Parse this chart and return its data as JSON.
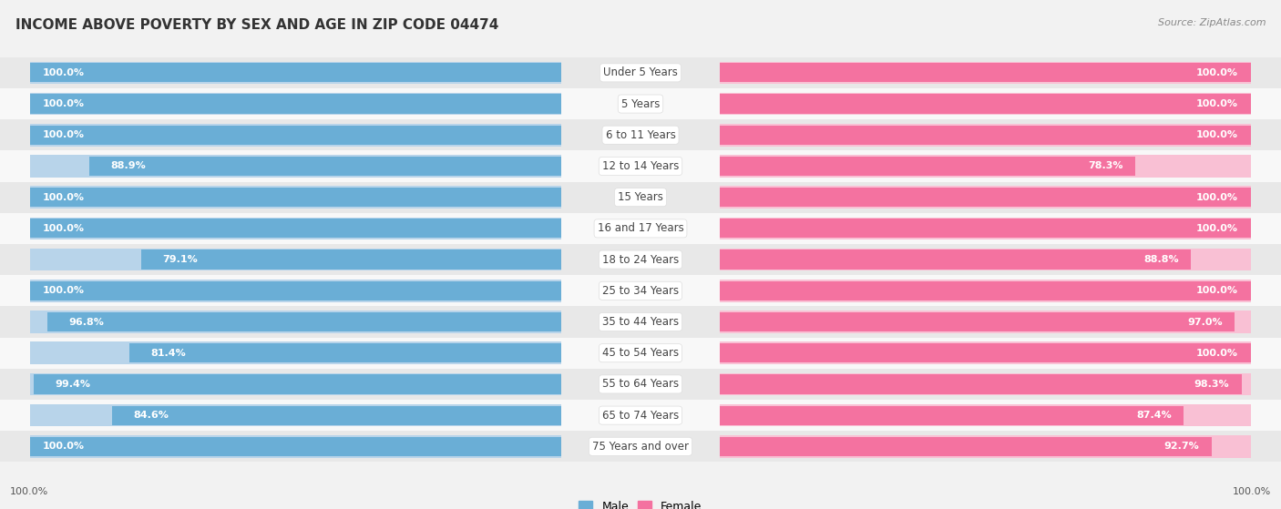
{
  "title": "INCOME ABOVE POVERTY BY SEX AND AGE IN ZIP CODE 04474",
  "source": "Source: ZipAtlas.com",
  "categories": [
    "Under 5 Years",
    "5 Years",
    "6 to 11 Years",
    "12 to 14 Years",
    "15 Years",
    "16 and 17 Years",
    "18 to 24 Years",
    "25 to 34 Years",
    "35 to 44 Years",
    "45 to 54 Years",
    "55 to 64 Years",
    "65 to 74 Years",
    "75 Years and over"
  ],
  "male_values": [
    100.0,
    100.0,
    100.0,
    88.9,
    100.0,
    100.0,
    79.1,
    100.0,
    96.8,
    81.4,
    99.4,
    84.6,
    100.0
  ],
  "female_values": [
    100.0,
    100.0,
    100.0,
    78.3,
    100.0,
    100.0,
    88.8,
    100.0,
    97.0,
    100.0,
    98.3,
    87.4,
    92.7
  ],
  "male_color_full": "#6aaed6",
  "male_color_light": "#b8d4ea",
  "female_color_full": "#f472a0",
  "female_color_light": "#f9c0d4",
  "male_label": "Male",
  "female_label": "Female",
  "background_color": "#f2f2f2",
  "row_color_odd": "#e8e8e8",
  "row_color_even": "#f8f8f8",
  "title_fontsize": 11,
  "source_fontsize": 8,
  "value_fontsize": 8,
  "category_fontsize": 8.5,
  "max_value": 100.0,
  "footer_male_value": "100.0%",
  "footer_female_value": "100.0%"
}
